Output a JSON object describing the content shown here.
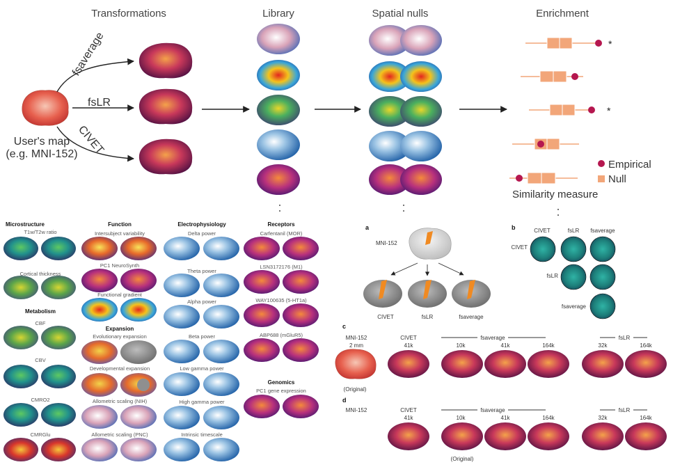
{
  "headers": {
    "transformations": "Transformations",
    "library": "Library",
    "spatial_nulls": "Spatial nulls",
    "enrichment": "Enrichment"
  },
  "user_map": {
    "line1": "User's map",
    "line2": "(e.g. MNI-152)"
  },
  "transform_labels": {
    "fsaverage": "fsaverage",
    "fslr": "fsLR",
    "civet": "CIVET"
  },
  "legend": {
    "empirical": "Empirical",
    "null": "Null",
    "similarity": "Similarity measure",
    "empirical_color": "#b5174f",
    "null_color": "#f2a679"
  },
  "enrichment_marks": [
    "*",
    "",
    "*",
    "",
    ""
  ],
  "sections": {
    "microstructure": "Microstructure",
    "metabolism": "Metabolism",
    "function": "Function",
    "expansion": "Expansion",
    "electrophysiology": "Electrophysiology",
    "receptors": "Receptors",
    "genomics": "Genomics"
  },
  "maps": {
    "t1t2": "T1w/T2w ratio",
    "thickness": "Cortical thickness",
    "cbf": "CBF",
    "cbv": "CBV",
    "cmro2": "CMRO2",
    "cmrglu": "CMRGlu",
    "intersubject": "Intersubject variability",
    "pc1_neurosynth": "PC1 NeuroSynth",
    "func_gradient": "Functional gradient",
    "evo_expansion": "Evolutionary expansion",
    "dev_expansion": "Developmental expansion",
    "allo_nih": "Allometric scaling (NIH)",
    "allo_pnc": "Allometric scaling (PNC)",
    "delta": "Delta power",
    "theta": "Theta power",
    "alpha": "Alpha power",
    "beta": "Beta power",
    "low_gamma": "Low gamma power",
    "high_gamma": "High gamma power",
    "timescale": "Intrinsic timescale",
    "carfentanil": "Carfentanil (MOR)",
    "lsn": "LSN3172176 (M1)",
    "way": "WAY100635 (5-HT1a)",
    "abp": "ABP688 (mGluR5)",
    "pc1_gene": "PC1 gene expression"
  },
  "panel_a": {
    "letter": "a",
    "mni": "MNI-152",
    "civet": "CIVET",
    "fslr": "fsLR",
    "fsaverage": "fsaverage"
  },
  "panel_b": {
    "letter": "b",
    "cols": [
      "CIVET",
      "fsLR",
      "fsaverage"
    ],
    "rows": [
      "CIVET",
      "fsLR",
      "fsaverage"
    ]
  },
  "panel_c": {
    "letter": "c",
    "mni": "MNI-152",
    "mni_res": "2 mm",
    "original": "(Original)",
    "civet": "CIVET",
    "civet_res": "41k",
    "fsaverage": "fsaverage",
    "fsavg_res": [
      "10k",
      "41k",
      "164k"
    ],
    "fslr": "fsLR",
    "fslr_res": [
      "32k",
      "164k"
    ]
  },
  "panel_d": {
    "letter": "d",
    "mni": "MNI-152",
    "civet": "CIVET",
    "civet_res": "41k",
    "fsaverage": "fsaverage",
    "fsavg_res": [
      "10k",
      "41k",
      "164k"
    ],
    "fslr": "fsLR",
    "fslr_res": [
      "32k",
      "164k"
    ],
    "original": "(Original)"
  },
  "ellipsis": ":"
}
